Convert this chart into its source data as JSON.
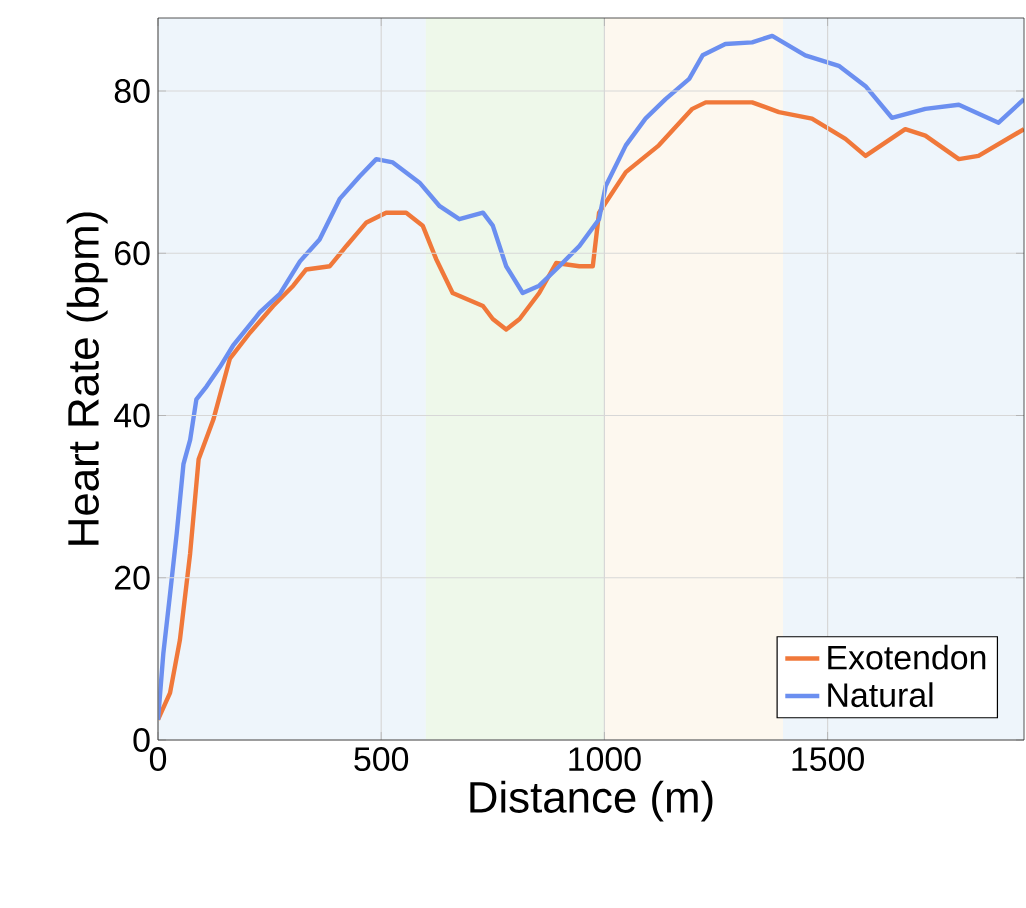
{
  "chart_data": {
    "type": "line",
    "xlabel": "Distance (m)",
    "ylabel": "Heart Rate (bpm)",
    "xlim": [
      0,
      1940
    ],
    "ylim": [
      0,
      89
    ],
    "xticks": [
      0,
      500,
      1000,
      1500
    ],
    "yticks": [
      0,
      20,
      40,
      60,
      80
    ],
    "grid": true,
    "legend": "bottom right",
    "bands": [
      {
        "axis": "x",
        "from": 0,
        "to": 600,
        "color": "#eef5fb"
      },
      {
        "axis": "x",
        "from": 600,
        "to": 1000,
        "color": "#eef8ea"
      },
      {
        "axis": "x",
        "from": 1000,
        "to": 1400,
        "color": "#fdf8ef"
      },
      {
        "axis": "x",
        "from": 1400,
        "to": 1940,
        "color": "#eef5fb"
      }
    ],
    "series": [
      {
        "name": "Exotendon",
        "color": "#f0783a",
        "x": [
          0,
          27,
          49,
          72,
          91,
          124,
          161,
          206,
          258,
          303,
          332,
          385,
          422,
          467,
          511,
          556,
          593,
          623,
          660,
          728,
          750,
          780,
          810,
          854,
          892,
          944,
          974,
          988,
          1048,
          1122,
          1197,
          1227,
          1331,
          1391,
          1465,
          1540,
          1585,
          1674,
          1719,
          1794,
          1838,
          1940
        ],
        "values": [
          2.5,
          5.8,
          12.3,
          23,
          34.6,
          39.5,
          47,
          50.2,
          53.5,
          56,
          58,
          58.4,
          60.9,
          63.8,
          65,
          65,
          63.4,
          59.3,
          55.1,
          53.5,
          51.9,
          50.6,
          51.9,
          55.1,
          58.8,
          58.4,
          58.4,
          65,
          70,
          73.3,
          77.8,
          78.6,
          78.6,
          77.4,
          76.6,
          74.1,
          72,
          75.3,
          74.5,
          71.6,
          72,
          75.3
        ]
      },
      {
        "name": "Natural",
        "color": "#6b8ff0",
        "x": [
          0,
          12,
          27,
          42,
          57,
          72,
          86,
          109,
          139,
          168,
          228,
          273,
          318,
          362,
          407,
          452,
          489,
          526,
          586,
          631,
          675,
          728,
          750,
          780,
          817,
          854,
          899,
          944,
          988,
          1003,
          1048,
          1092,
          1137,
          1190,
          1220,
          1271,
          1331,
          1376,
          1450,
          1525,
          1585,
          1644,
          1719,
          1794,
          1883,
          1940
        ],
        "values": [
          2.5,
          10.7,
          18,
          25.5,
          34,
          37,
          42,
          43.6,
          46,
          48.6,
          52.7,
          55,
          59,
          61.7,
          66.7,
          69.5,
          71.6,
          71.2,
          68.7,
          65.8,
          64.2,
          65,
          63.4,
          58.4,
          55.1,
          56,
          58.4,
          60.9,
          64.2,
          68.3,
          73.3,
          76.6,
          79,
          81.5,
          84.4,
          85.8,
          86,
          86.8,
          84.4,
          83.1,
          80.6,
          76.7,
          77.8,
          78.3,
          76.1,
          79
        ]
      }
    ]
  }
}
